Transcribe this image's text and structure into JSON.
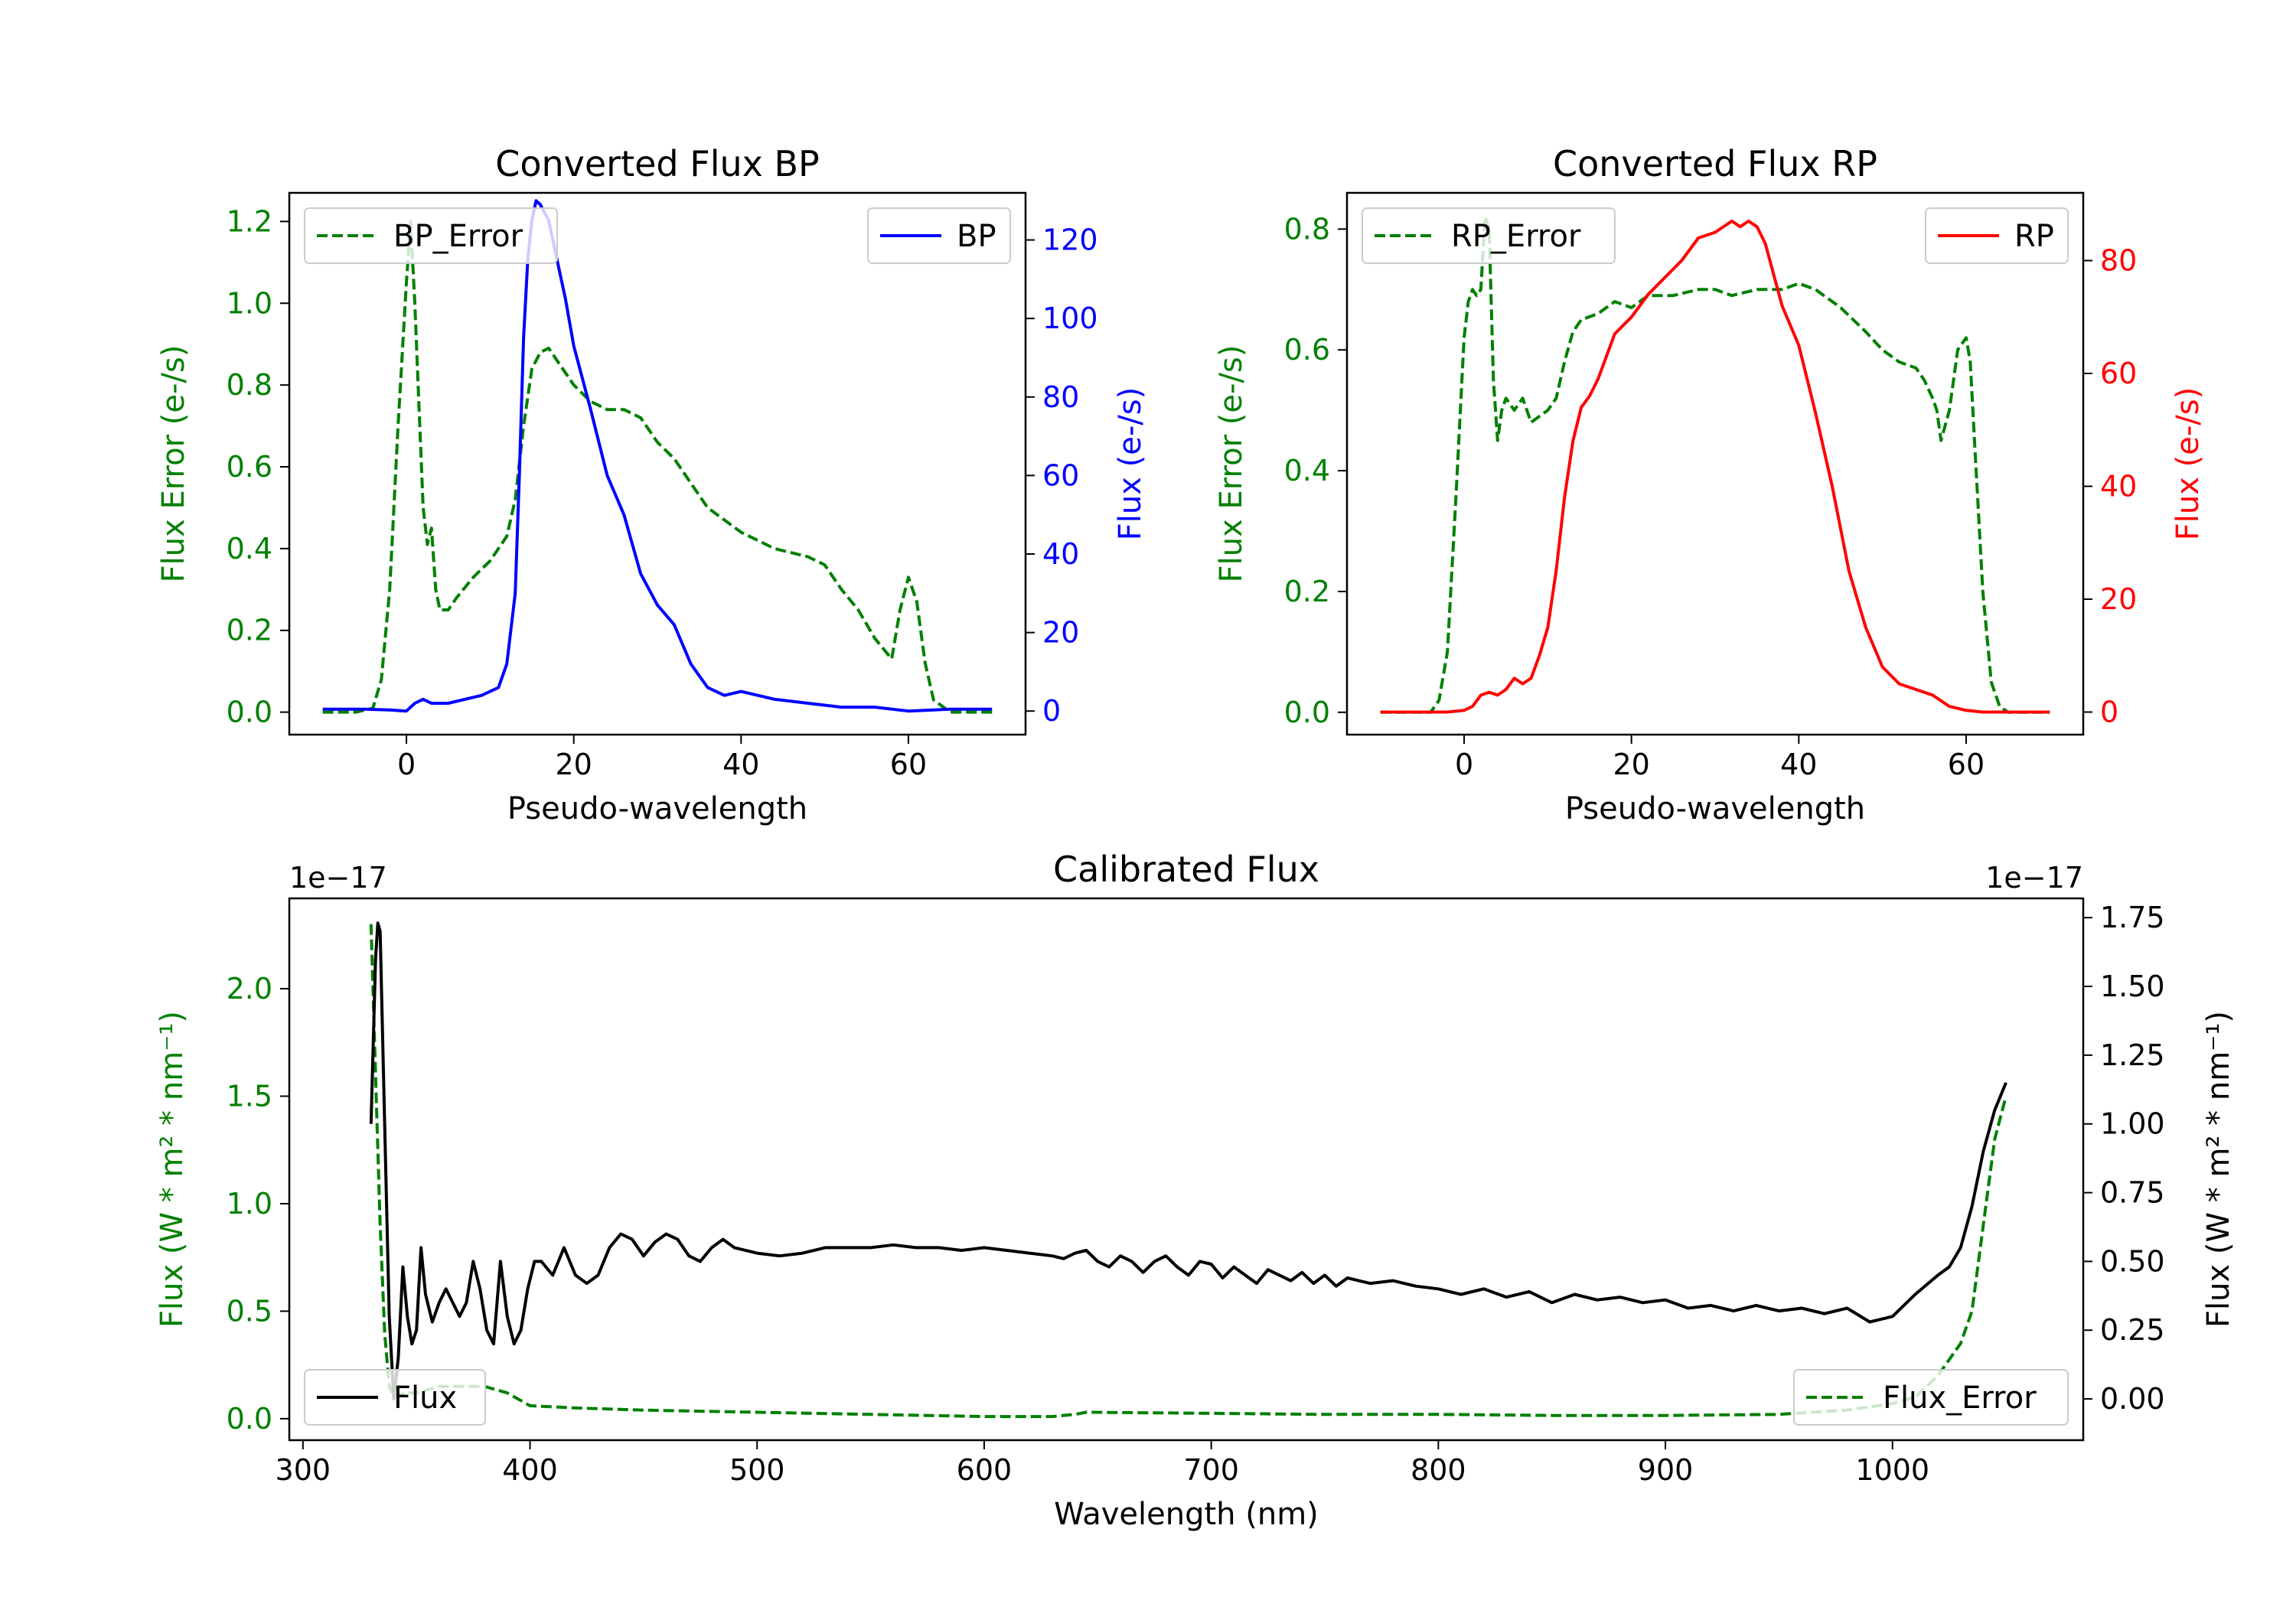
{
  "chart_data": [
    {
      "type": "line",
      "title": "Converted Flux BP",
      "xlabel": "Pseudo-wavelength",
      "ylabel_left": "Flux Error (e-/s)",
      "ylabel_right": "Flux (e-/s)",
      "xlim": [
        -14,
        74
      ],
      "ylim_left": [
        -0.055,
        1.27
      ],
      "ylim_right": [
        -6,
        132
      ],
      "xticks": [
        0,
        20,
        40,
        60
      ],
      "yticks_left": [
        0.0,
        0.2,
        0.4,
        0.6,
        0.8,
        1.0,
        1.2
      ],
      "yticks_left_labels": [
        "0.0",
        "0.2",
        "0.4",
        "0.6",
        "0.8",
        "1.0",
        "1.2"
      ],
      "yticks_right": [
        0,
        20,
        40,
        60,
        80,
        100,
        120
      ],
      "yticks_right_labels": [
        "0",
        "20",
        "40",
        "60",
        "80",
        "100",
        "120"
      ],
      "left_color": "#008000",
      "right_color": "#0000ff",
      "legend_left_placement": "upper left",
      "legend_right_placement": "upper right",
      "series": [
        {
          "name": "BP_Error",
          "axis": "left",
          "style": "dashed",
          "color": "#008000",
          "x": [
            -10,
            -6,
            -4,
            -3,
            -2,
            -1,
            0,
            0.5,
            1,
            1.5,
            2,
            2.5,
            3,
            3.5,
            4,
            5,
            6,
            8,
            10,
            12,
            13,
            14,
            15,
            16,
            17,
            18,
            20,
            22,
            24,
            26,
            28,
            30,
            32,
            34,
            36,
            38,
            40,
            44,
            48,
            50,
            52,
            54,
            56,
            58,
            59,
            60,
            61,
            62,
            63,
            65,
            70
          ],
          "values": [
            0.0,
            0.0,
            0.01,
            0.08,
            0.3,
            0.7,
            1.05,
            1.2,
            1.0,
            0.75,
            0.5,
            0.41,
            0.45,
            0.3,
            0.25,
            0.25,
            0.28,
            0.33,
            0.37,
            0.43,
            0.52,
            0.7,
            0.84,
            0.88,
            0.89,
            0.86,
            0.8,
            0.76,
            0.74,
            0.74,
            0.72,
            0.66,
            0.62,
            0.56,
            0.5,
            0.47,
            0.44,
            0.4,
            0.38,
            0.36,
            0.3,
            0.25,
            0.18,
            0.13,
            0.25,
            0.33,
            0.27,
            0.12,
            0.03,
            0.0,
            0.0
          ]
        },
        {
          "name": "BP",
          "axis": "right",
          "style": "solid",
          "color": "#0000ff",
          "x": [
            -10,
            -5,
            -2,
            0,
            1,
            2,
            3,
            5,
            7,
            9,
            11,
            12,
            13,
            13.5,
            14,
            14.5,
            15,
            15.5,
            16,
            17,
            18,
            19,
            20,
            22,
            24,
            26,
            28,
            30,
            32,
            34,
            36,
            38,
            40,
            44,
            48,
            52,
            56,
            60,
            65,
            70
          ],
          "values": [
            0.5,
            0.5,
            0.3,
            0,
            2,
            3,
            2,
            2,
            3,
            4,
            6,
            12,
            30,
            60,
            95,
            115,
            125,
            130,
            129,
            125,
            115,
            105,
            93,
            77,
            60,
            50,
            35,
            27,
            22,
            12,
            6,
            4,
            5,
            3,
            2,
            1,
            1,
            0,
            0.5,
            0.5
          ]
        }
      ]
    },
    {
      "type": "line",
      "title": "Converted Flux RP",
      "xlabel": "Pseudo-wavelength",
      "ylabel_left": "Flux Error (e-/s)",
      "ylabel_right": "Flux (e-/s)",
      "xlim": [
        -14,
        74
      ],
      "ylim_left": [
        -0.037,
        0.86
      ],
      "ylim_right": [
        -4,
        92
      ],
      "xticks": [
        0,
        20,
        40,
        60
      ],
      "yticks_left": [
        0.0,
        0.2,
        0.4,
        0.6,
        0.8
      ],
      "yticks_left_labels": [
        "0.0",
        "0.2",
        "0.4",
        "0.6",
        "0.8"
      ],
      "yticks_right": [
        0,
        20,
        40,
        60,
        80
      ],
      "yticks_right_labels": [
        "0",
        "20",
        "40",
        "60",
        "80"
      ],
      "left_color": "#008000",
      "right_color": "#ff0000",
      "legend_left_placement": "upper left",
      "legend_right_placement": "upper right",
      "series": [
        {
          "name": "RP_Error",
          "axis": "left",
          "style": "dashed",
          "color": "#008000",
          "x": [
            -10,
            -5,
            -4,
            -3,
            -2,
            -1,
            0,
            0.5,
            1,
            1.5,
            2,
            2.5,
            3,
            3.5,
            4,
            4.5,
            5,
            6,
            7,
            8,
            10,
            11,
            12,
            13,
            14,
            16,
            18,
            20,
            22,
            25,
            28,
            30,
            32,
            35,
            38,
            40,
            42,
            45,
            48,
            50,
            52,
            54,
            55,
            56,
            56.5,
            57,
            58,
            59,
            60,
            60.5,
            61,
            62,
            63,
            64,
            65,
            70
          ],
          "values": [
            0.0,
            0.0,
            0.0,
            0.02,
            0.1,
            0.35,
            0.62,
            0.68,
            0.7,
            0.69,
            0.7,
            0.82,
            0.8,
            0.55,
            0.45,
            0.5,
            0.52,
            0.5,
            0.52,
            0.48,
            0.5,
            0.52,
            0.58,
            0.63,
            0.65,
            0.66,
            0.68,
            0.67,
            0.69,
            0.69,
            0.7,
            0.7,
            0.69,
            0.7,
            0.7,
            0.71,
            0.7,
            0.67,
            0.63,
            0.6,
            0.58,
            0.57,
            0.55,
            0.52,
            0.5,
            0.45,
            0.5,
            0.6,
            0.62,
            0.58,
            0.45,
            0.2,
            0.05,
            0.01,
            0.0,
            0.0
          ]
        },
        {
          "name": "RP",
          "axis": "right",
          "style": "solid",
          "color": "#ff0000",
          "x": [
            -10,
            -5,
            -2,
            0,
            1,
            2,
            3,
            4,
            5,
            6,
            7,
            8,
            9,
            10,
            11,
            12,
            13,
            14,
            15,
            16,
            17,
            18,
            20,
            22,
            24,
            26,
            28,
            30,
            32,
            33,
            34,
            35,
            36,
            38,
            40,
            42,
            44,
            46,
            48,
            50,
            52,
            54,
            56,
            58,
            60,
            62,
            70
          ],
          "values": [
            0,
            0,
            0,
            0.3,
            1,
            3,
            3.5,
            3,
            4,
            6,
            5,
            6,
            10,
            15,
            25,
            38,
            48,
            54,
            56,
            59,
            63,
            67,
            70,
            74,
            77,
            80,
            84,
            85,
            87,
            86,
            87,
            86,
            83,
            72,
            65,
            53,
            40,
            25,
            15,
            8,
            5,
            4,
            3,
            1,
            0.3,
            0,
            0
          ]
        }
      ]
    },
    {
      "type": "line",
      "title": "Calibrated Flux",
      "xlabel": "Wavelength (nm)",
      "ylabel_left": "Flux (W * m² * nm⁻¹)",
      "ylabel_right": "Flux (W * m² * nm⁻¹)",
      "offset_left": "1e−17",
      "offset_right": "1e−17",
      "xlim": [
        294,
        1084
      ],
      "ylim_left": [
        -0.1,
        2.42
      ],
      "ylim_right": [
        -0.15,
        1.82
      ],
      "xticks": [
        300,
        400,
        500,
        600,
        700,
        800,
        900,
        1000
      ],
      "yticks_left": [
        0.0,
        0.5,
        1.0,
        1.5,
        2.0
      ],
      "yticks_left_labels": [
        "0.0",
        "0.5",
        "1.0",
        "1.5",
        "2.0"
      ],
      "yticks_right": [
        0.0,
        0.25,
        0.5,
        0.75,
        1.0,
        1.25,
        1.5,
        1.75
      ],
      "yticks_right_labels": [
        "0.00",
        "0.25",
        "0.50",
        "0.75",
        "1.00",
        "1.25",
        "1.50",
        "1.75"
      ],
      "left_color": "#008000",
      "right_color": "#000000",
      "legend_left_placement": "lower left",
      "legend_right_placement": "lower right",
      "series": [
        {
          "name": "Flux_Error",
          "axis": "left",
          "style": "dashed",
          "color": "#008000",
          "x": [
            330,
            332,
            334,
            336,
            338,
            340,
            345,
            350,
            360,
            370,
            380,
            390,
            400,
            420,
            450,
            500,
            550,
            600,
            630,
            640,
            645,
            700,
            750,
            800,
            850,
            900,
            950,
            980,
            1000,
            1010,
            1020,
            1030,
            1035,
            1040,
            1045,
            1050
          ],
          "values": [
            2.3,
            1.6,
            0.9,
            0.4,
            0.15,
            0.1,
            0.12,
            0.12,
            0.15,
            0.15,
            0.15,
            0.12,
            0.06,
            0.05,
            0.04,
            0.03,
            0.02,
            0.01,
            0.01,
            0.02,
            0.03,
            0.025,
            0.02,
            0.02,
            0.015,
            0.015,
            0.02,
            0.04,
            0.07,
            0.1,
            0.2,
            0.35,
            0.5,
            0.9,
            1.3,
            1.5
          ]
        },
        {
          "name": "Flux",
          "axis": "right",
          "style": "solid",
          "color": "#000000",
          "x": [
            330,
            332,
            333,
            334,
            336,
            338,
            340,
            342,
            344,
            346,
            348,
            350,
            352,
            354,
            357,
            360,
            363,
            366,
            369,
            372,
            375,
            378,
            381,
            384,
            387,
            390,
            393,
            396,
            399,
            402,
            405,
            410,
            415,
            420,
            425,
            430,
            435,
            440,
            445,
            450,
            455,
            460,
            465,
            470,
            475,
            480,
            485,
            490,
            500,
            510,
            520,
            530,
            540,
            550,
            560,
            570,
            580,
            590,
            600,
            610,
            620,
            630,
            635,
            640,
            645,
            650,
            655,
            660,
            665,
            670,
            675,
            680,
            685,
            690,
            695,
            700,
            705,
            710,
            715,
            720,
            725,
            730,
            735,
            740,
            745,
            750,
            755,
            760,
            770,
            780,
            790,
            800,
            810,
            820,
            830,
            840,
            850,
            860,
            870,
            880,
            890,
            900,
            910,
            920,
            930,
            940,
            950,
            960,
            970,
            980,
            990,
            995,
            1000,
            1010,
            1020,
            1025,
            1030,
            1035,
            1040,
            1045,
            1050
          ],
          "values": [
            1.0,
            1.6,
            1.73,
            1.7,
            1.0,
            0.3,
            0.0,
            0.15,
            0.48,
            0.3,
            0.2,
            0.25,
            0.55,
            0.38,
            0.28,
            0.35,
            0.4,
            0.35,
            0.3,
            0.35,
            0.5,
            0.4,
            0.25,
            0.2,
            0.5,
            0.3,
            0.2,
            0.25,
            0.4,
            0.5,
            0.5,
            0.45,
            0.55,
            0.45,
            0.42,
            0.45,
            0.55,
            0.6,
            0.58,
            0.52,
            0.57,
            0.6,
            0.58,
            0.52,
            0.5,
            0.55,
            0.58,
            0.55,
            0.53,
            0.52,
            0.53,
            0.55,
            0.55,
            0.55,
            0.56,
            0.55,
            0.55,
            0.54,
            0.55,
            0.54,
            0.53,
            0.52,
            0.51,
            0.53,
            0.54,
            0.5,
            0.48,
            0.52,
            0.5,
            0.46,
            0.5,
            0.52,
            0.48,
            0.45,
            0.5,
            0.49,
            0.44,
            0.48,
            0.45,
            0.42,
            0.47,
            0.45,
            0.43,
            0.46,
            0.42,
            0.45,
            0.41,
            0.44,
            0.42,
            0.43,
            0.41,
            0.4,
            0.38,
            0.4,
            0.37,
            0.39,
            0.35,
            0.38,
            0.36,
            0.37,
            0.35,
            0.36,
            0.33,
            0.34,
            0.32,
            0.34,
            0.32,
            0.33,
            0.31,
            0.33,
            0.28,
            0.29,
            0.3,
            0.38,
            0.45,
            0.48,
            0.55,
            0.7,
            0.9,
            1.05,
            1.15
          ]
        }
      ]
    }
  ]
}
